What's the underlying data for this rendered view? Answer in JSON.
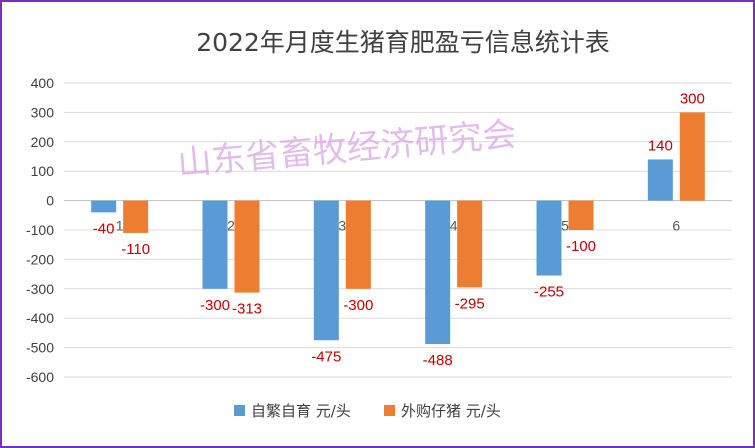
{
  "chart_data": {
    "type": "bar",
    "title": "2022年月度生猪育肥盈亏信息统计表",
    "watermark": "山东省畜牧经济研究会",
    "categories": [
      "1",
      "2",
      "3",
      "4",
      "5",
      "6"
    ],
    "series": [
      {
        "name": "自繁自育 元/头",
        "color": "#5b9bd5",
        "values": [
          -40,
          -300,
          -475,
          -488,
          -255,
          140
        ]
      },
      {
        "name": "外购仔猪 元/头",
        "color": "#ed7d31",
        "values": [
          -110,
          -313,
          -300,
          -295,
          -100,
          300
        ]
      }
    ],
    "ylim": [
      -600,
      400
    ],
    "yticks": [
      400,
      300,
      200,
      100,
      0,
      -100,
      -200,
      -300,
      -400,
      -500,
      -600
    ],
    "grid": true,
    "legend": "bottom",
    "label_color": "#c00000",
    "frame_color": "#7b2fbf"
  }
}
